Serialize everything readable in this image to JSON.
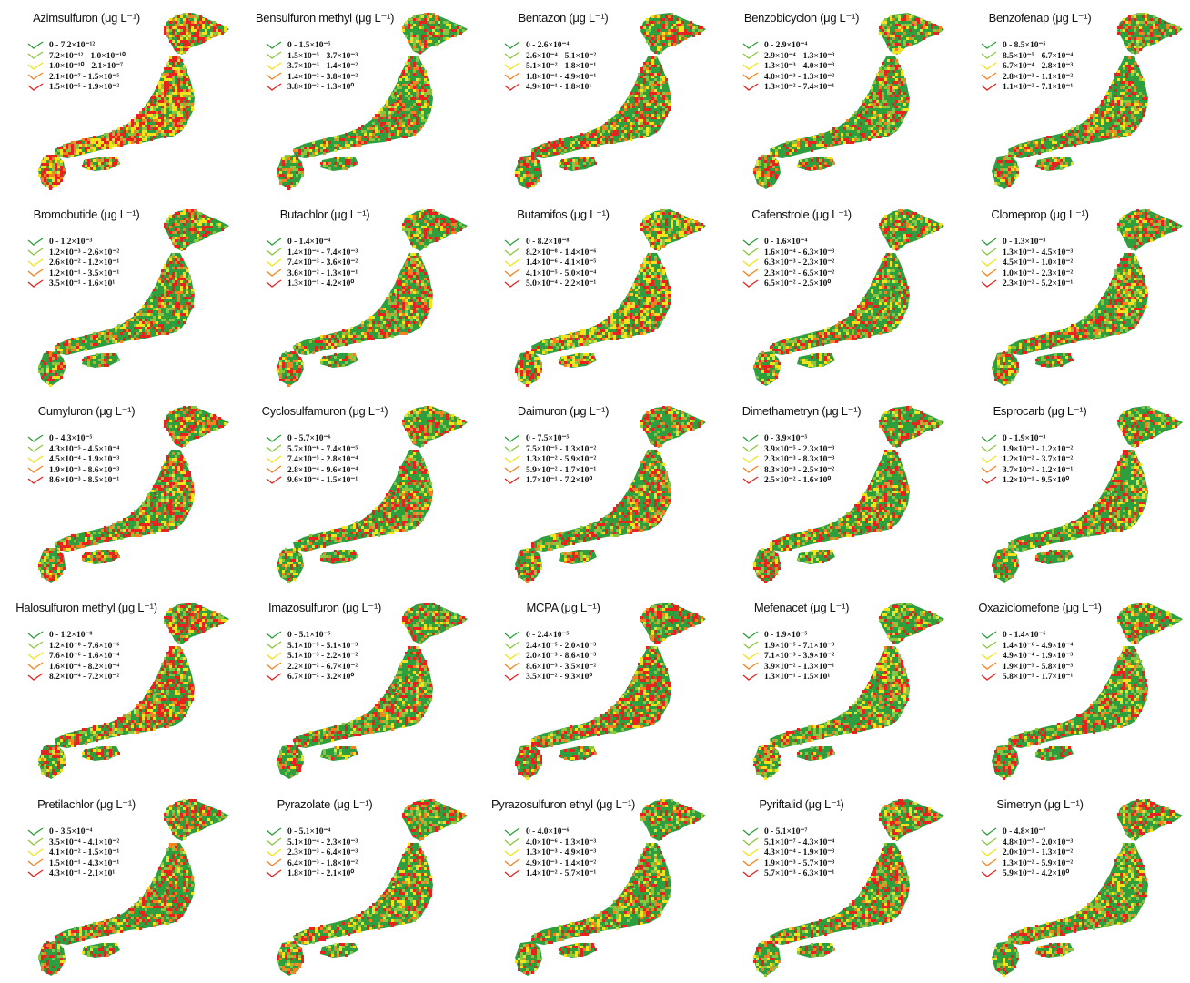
{
  "colors": {
    "class1": "#2e9e3e",
    "class2": "#8cc63f",
    "class3": "#f2e31b",
    "class4": "#f58220",
    "class5": "#e8221f"
  },
  "panels": [
    {
      "title": "Azimsulfuron (μg L⁻¹)",
      "classes": [
        "0      - 7.2×10⁻¹²",
        "7.2×10⁻¹² - 1.0×10⁻¹⁰",
        "1.0×10⁻¹⁰ - 2.1×10⁻⁷",
        "2.1×10⁻⁷ - 1.5×10⁻⁵",
        "1.5×10⁻⁵ - 1.9×10⁻²"
      ],
      "mix": [
        0.2,
        0.15,
        0.25,
        0.1,
        0.3
      ]
    },
    {
      "title": "Bensulfuron methyl (μg L⁻¹)",
      "classes": [
        "0      - 1.5×10⁻⁵",
        "1.5×10⁻⁵ - 3.7×10⁻³",
        "3.7×10⁻³ - 1.4×10⁻²",
        "1.4×10⁻² - 3.8×10⁻²",
        "3.8×10⁻² - 1.3×10⁰"
      ],
      "mix": [
        0.45,
        0.15,
        0.1,
        0.1,
        0.2
      ]
    },
    {
      "title": "Bentazon (μg L⁻¹)",
      "classes": [
        "0      - 2.6×10⁻⁴",
        "2.6×10⁻⁴ - 5.1×10⁻²",
        "5.1×10⁻² - 1.8×10⁻¹",
        "1.8×10⁻¹ - 4.9×10⁻¹",
        "4.9×10⁻¹ - 1.8×10¹"
      ],
      "mix": [
        0.45,
        0.12,
        0.1,
        0.1,
        0.23
      ]
    },
    {
      "title": "Benzobicyclon (μg L⁻¹)",
      "classes": [
        "0      - 2.9×10⁻⁴",
        "2.9×10⁻⁴ - 1.3×10⁻³",
        "1.3×10⁻³ - 4.0×10⁻³",
        "4.0×10⁻³ - 1.3×10⁻²",
        "1.3×10⁻² - 7.4×10⁻¹"
      ],
      "mix": [
        0.45,
        0.15,
        0.12,
        0.08,
        0.2
      ]
    },
    {
      "title": "Benzofenap (μg L⁻¹)",
      "classes": [
        "0      - 8.5×10⁻⁵",
        "8.5×10⁻⁵ - 6.7×10⁻⁴",
        "6.7×10⁻⁴ - 2.8×10⁻³",
        "2.8×10⁻³ - 1.1×10⁻²",
        "1.1×10⁻² - 7.1×10⁻¹"
      ],
      "mix": [
        0.45,
        0.15,
        0.12,
        0.08,
        0.2
      ]
    },
    {
      "title": "Bromobutide (μg L⁻¹)",
      "classes": [
        "0      - 1.2×10⁻³",
        "1.2×10⁻³ - 2.6×10⁻²",
        "2.6×10⁻² - 1.2×10⁻¹",
        "1.2×10⁻¹ - 3.5×10⁻¹",
        "3.5×10⁻¹ - 1.6×10¹"
      ],
      "mix": [
        0.45,
        0.12,
        0.13,
        0.1,
        0.2
      ]
    },
    {
      "title": "Butachlor (μg L⁻¹)",
      "classes": [
        "0      - 1.4×10⁻⁴",
        "1.4×10⁻⁴ - 7.4×10⁻³",
        "7.4×10⁻³ - 3.6×10⁻²",
        "3.6×10⁻² - 1.3×10⁻¹",
        "1.3×10⁻¹ - 4.2×10⁰"
      ],
      "mix": [
        0.45,
        0.15,
        0.1,
        0.1,
        0.2
      ]
    },
    {
      "title": "Butamifos (μg L⁻¹)",
      "classes": [
        "0      - 8.2×10⁻⁸",
        "8.2×10⁻⁸ - 1.4×10⁻⁶",
        "1.4×10⁻⁶ - 4.1×10⁻⁵",
        "4.1×10⁻⁵ - 5.0×10⁻⁴",
        "5.0×10⁻⁴ - 2.2×10⁻¹"
      ],
      "mix": [
        0.35,
        0.12,
        0.25,
        0.08,
        0.2
      ]
    },
    {
      "title": "Cafenstrole (μg L⁻¹)",
      "classes": [
        "0      - 1.6×10⁻⁴",
        "1.6×10⁻⁴ - 6.3×10⁻³",
        "6.3×10⁻³ - 2.3×10⁻²",
        "2.3×10⁻² - 6.5×10⁻²",
        "6.5×10⁻² - 2.5×10⁰"
      ],
      "mix": [
        0.45,
        0.15,
        0.12,
        0.08,
        0.2
      ]
    },
    {
      "title": "Clomeprop (μg L⁻¹)",
      "classes": [
        "0      - 1.3×10⁻³",
        "1.3×10⁻³ - 4.5×10⁻³",
        "4.5×10⁻³ - 1.0×10⁻²",
        "1.0×10⁻² - 2.3×10⁻²",
        "2.3×10⁻² - 5.2×10⁻¹"
      ],
      "mix": [
        0.45,
        0.15,
        0.12,
        0.08,
        0.2
      ]
    },
    {
      "title": "Cumyluron (μg L⁻¹)",
      "classes": [
        "0      - 4.3×10⁻⁵",
        "4.3×10⁻⁵ - 4.5×10⁻⁴",
        "4.5×10⁻⁴ - 1.9×10⁻³",
        "1.9×10⁻³ - 8.6×10⁻³",
        "8.6×10⁻³ - 8.5×10⁻¹"
      ],
      "mix": [
        0.4,
        0.12,
        0.1,
        0.1,
        0.28
      ]
    },
    {
      "title": "Cyclosulfamuron (μg L⁻¹)",
      "classes": [
        "0      - 5.7×10⁻⁶",
        "5.7×10⁻⁶ - 7.4×10⁻⁵",
        "7.4×10⁻⁵ - 2.8×10⁻⁴",
        "2.8×10⁻⁴ - 9.6×10⁻⁴",
        "9.6×10⁻⁴ - 1.5×10⁻¹"
      ],
      "mix": [
        0.45,
        0.15,
        0.12,
        0.08,
        0.2
      ]
    },
    {
      "title": "Daimuron (μg L⁻¹)",
      "classes": [
        "0      - 7.5×10⁻⁵",
        "7.5×10⁻⁵ - 1.3×10⁻²",
        "1.3×10⁻² - 5.9×10⁻²",
        "5.9×10⁻² - 1.7×10⁻¹",
        "1.7×10⁻¹ - 7.2×10⁰"
      ],
      "mix": [
        0.45,
        0.12,
        0.1,
        0.1,
        0.23
      ]
    },
    {
      "title": "Dimethametryn (μg L⁻¹)",
      "classes": [
        "0      - 3.9×10⁻⁵",
        "3.9×10⁻⁵ - 2.3×10⁻³",
        "2.3×10⁻³ - 8.3×10⁻³",
        "8.3×10⁻³ - 2.5×10⁻²",
        "2.5×10⁻² - 1.6×10⁰"
      ],
      "mix": [
        0.45,
        0.15,
        0.12,
        0.08,
        0.2
      ]
    },
    {
      "title": "Esprocarb (μg L⁻¹)",
      "classes": [
        "0      - 1.9×10⁻³",
        "1.9×10⁻³ - 1.2×10⁻²",
        "1.2×10⁻² - 3.7×10⁻²",
        "3.7×10⁻² - 1.2×10⁻¹",
        "1.2×10⁻¹ - 9.5×10⁰"
      ],
      "mix": [
        0.45,
        0.15,
        0.12,
        0.08,
        0.2
      ]
    },
    {
      "title": "Halosulfuron methyl (μg L⁻¹)",
      "classes": [
        "0      - 1.2×10⁻⁸",
        "1.2×10⁻⁸ - 7.6×10⁻⁶",
        "7.6×10⁻⁶ - 1.6×10⁻⁴",
        "1.6×10⁻⁴ - 8.2×10⁻⁴",
        "8.2×10⁻⁴ - 7.2×10⁻²"
      ],
      "mix": [
        0.35,
        0.12,
        0.15,
        0.08,
        0.3
      ]
    },
    {
      "title": "Imazosulfuron (μg L⁻¹)",
      "classes": [
        "0      - 5.1×10⁻⁵",
        "5.1×10⁻⁵ - 5.1×10⁻³",
        "5.1×10⁻³ - 2.2×10⁻²",
        "2.2×10⁻² - 6.7×10⁻²",
        "6.7×10⁻² - 3.2×10⁰"
      ],
      "mix": [
        0.45,
        0.15,
        0.12,
        0.08,
        0.2
      ]
    },
    {
      "title": "MCPA (μg L⁻¹)",
      "classes": [
        "0      - 2.4×10⁻⁵",
        "2.4×10⁻⁵ - 2.0×10⁻³",
        "2.0×10⁻³ - 8.6×10⁻³",
        "8.6×10⁻³ - 3.5×10⁻²",
        "3.5×10⁻² - 9.3×10⁰"
      ],
      "mix": [
        0.4,
        0.12,
        0.1,
        0.1,
        0.28
      ]
    },
    {
      "title": "Mefenacet (μg L⁻¹)",
      "classes": [
        "0      - 1.9×10⁻⁵",
        "1.9×10⁻⁵ - 7.1×10⁻³",
        "7.1×10⁻³ - 3.9×10⁻²",
        "3.9×10⁻² - 1.3×10⁻¹",
        "1.3×10⁻¹ - 1.5×10¹"
      ],
      "mix": [
        0.45,
        0.15,
        0.12,
        0.08,
        0.2
      ]
    },
    {
      "title": "Oxaziclomefone (μg L⁻¹)",
      "classes": [
        "0      - 1.4×10⁻⁶",
        "1.4×10⁻⁶ - 4.9×10⁻⁴",
        "4.9×10⁻⁴ - 1.9×10⁻³",
        "1.9×10⁻³ - 5.8×10⁻³",
        "5.8×10⁻³ - 1.7×10⁻¹"
      ],
      "mix": [
        0.45,
        0.15,
        0.12,
        0.08,
        0.2
      ]
    },
    {
      "title": "Pretilachlor (μg L⁻¹)",
      "classes": [
        "0      - 3.5×10⁻⁴",
        "3.5×10⁻⁴ - 4.1×10⁻²",
        "4.1×10⁻² - 1.5×10⁻¹",
        "1.5×10⁻¹ - 4.3×10⁻¹",
        "4.3×10⁻¹ - 2.1×10¹"
      ],
      "mix": [
        0.45,
        0.12,
        0.1,
        0.1,
        0.23
      ]
    },
    {
      "title": "Pyrazolate (μg L⁻¹)",
      "classes": [
        "0      - 5.1×10⁻⁴",
        "5.1×10⁻⁴ - 2.3×10⁻³",
        "2.3×10⁻³ - 6.4×10⁻³",
        "6.4×10⁻³ - 1.8×10⁻²",
        "1.8×10⁻² - 2.1×10⁰"
      ],
      "mix": [
        0.45,
        0.15,
        0.12,
        0.08,
        0.2
      ]
    },
    {
      "title": "Pyrazosulfuron ethyl (μg L⁻¹)",
      "classes": [
        "0      - 4.0×10⁻⁶",
        "4.0×10⁻⁶ - 1.3×10⁻³",
        "1.3×10⁻³ - 4.9×10⁻³",
        "4.9×10⁻³ - 1.4×10⁻²",
        "1.4×10⁻² - 5.7×10⁻¹"
      ],
      "mix": [
        0.45,
        0.15,
        0.12,
        0.08,
        0.2
      ]
    },
    {
      "title": "Pyriftalid (μg L⁻¹)",
      "classes": [
        "0      - 5.1×10⁻⁷",
        "5.1×10⁻⁷ - 4.3×10⁻⁴",
        "4.3×10⁻⁴ - 1.9×10⁻³",
        "1.9×10⁻³ - 5.7×10⁻³",
        "5.7×10⁻³ - 6.3×10⁻¹"
      ],
      "mix": [
        0.45,
        0.15,
        0.12,
        0.08,
        0.2
      ]
    },
    {
      "title": "Simetryn (μg L⁻¹)",
      "classes": [
        "0      - 4.8×10⁻⁷",
        "4.8×10⁻⁷ - 2.0×10⁻³",
        "2.0×10⁻³ - 1.3×10⁻²",
        "1.3×10⁻² - 5.9×10⁻²",
        "5.9×10⁻² - 4.2×10⁰"
      ],
      "mix": [
        0.45,
        0.15,
        0.12,
        0.08,
        0.2
      ]
    }
  ]
}
